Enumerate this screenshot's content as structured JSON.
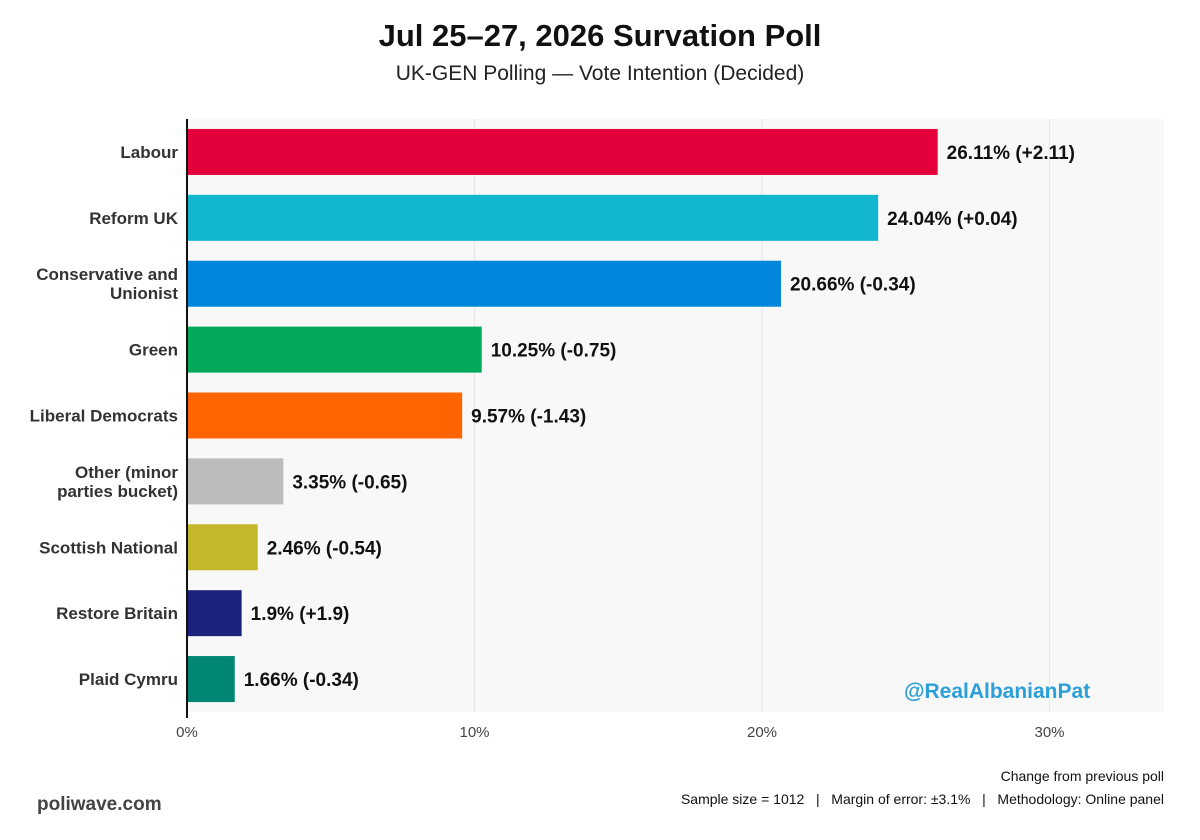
{
  "chart_data": {
    "type": "bar",
    "orientation": "horizontal",
    "title": "Jul 25–27, 2026 Survation Poll",
    "subtitle": "UK-GEN Polling — Vote Intention (Decided)",
    "categories": [
      "Labour",
      "Reform UK",
      "Conservative and Unionist",
      "Green",
      "Liberal Democrats",
      "Other (minor parties bucket)",
      "Scottish National",
      "Restore Britain",
      "Plaid Cymru"
    ],
    "category_lines": [
      [
        "Labour"
      ],
      [
        "Reform UK"
      ],
      [
        "Conservative and",
        "Unionist"
      ],
      [
        "Green"
      ],
      [
        "Liberal Democrats"
      ],
      [
        "Other (minor",
        "parties bucket)"
      ],
      [
        "Scottish National"
      ],
      [
        "Restore Britain"
      ],
      [
        "Plaid Cymru"
      ]
    ],
    "values": [
      26.11,
      24.04,
      20.66,
      10.25,
      9.57,
      3.35,
      2.46,
      1.9,
      1.66
    ],
    "value_labels": [
      "26.11% (+2.11)",
      "24.04% (+0.04)",
      "20.66% (-0.34)",
      "10.25% (-0.75)",
      "9.57% (-1.43)",
      "3.35% (-0.65)",
      "2.46% (-0.54)",
      "1.9% (+1.9)",
      "1.66% (-0.34)"
    ],
    "colors": [
      "#e4003b",
      "#12b6cf",
      "#0087dc",
      "#02a95b",
      "#ff6400",
      "#bbbbbb",
      "#c4b82a",
      "#1c237f",
      "#008672"
    ],
    "xlim": [
      0,
      34
    ],
    "xticks": [
      0,
      10,
      20,
      30
    ],
    "xtick_labels": [
      "0%",
      "10%",
      "20%",
      "30%"
    ],
    "grid": true
  },
  "watermark": "@RealAlbanianPat",
  "footer": {
    "site": "poliwave.com",
    "note": "Change from previous poll",
    "meta": "Sample size = 1012   |   Margin of error: ±3.1%   |   Methodology: Online panel"
  }
}
